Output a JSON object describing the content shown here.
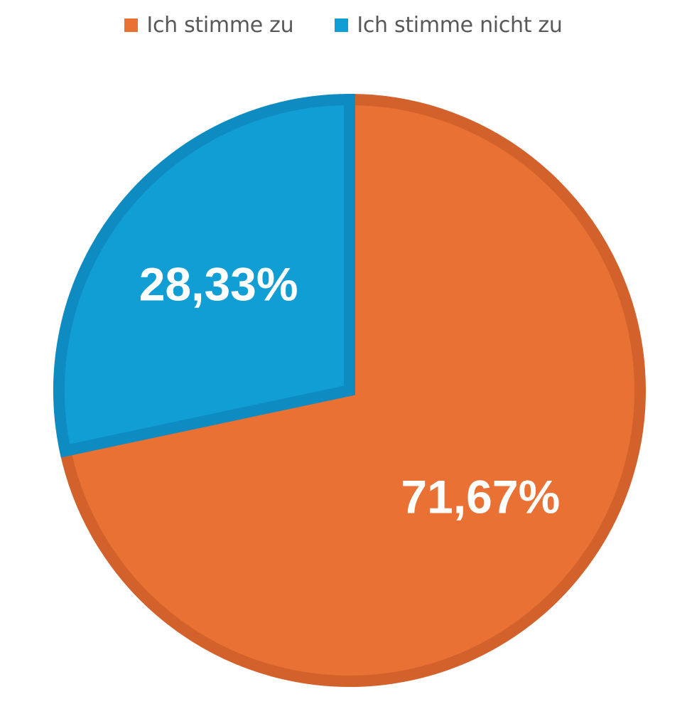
{
  "chart_data": {
    "type": "pie",
    "title": "",
    "legend_position": "top",
    "slices": [
      {
        "name": "Ich stimme zu",
        "value": 71.67,
        "label": "71,67%",
        "color": "#E87133",
        "border_color": "#D3612B"
      },
      {
        "name": "Ich stimme nicht zu",
        "value": 28.33,
        "label": "28,33%",
        "color": "#109ED5",
        "border_color": "#0E8CC2"
      }
    ]
  }
}
